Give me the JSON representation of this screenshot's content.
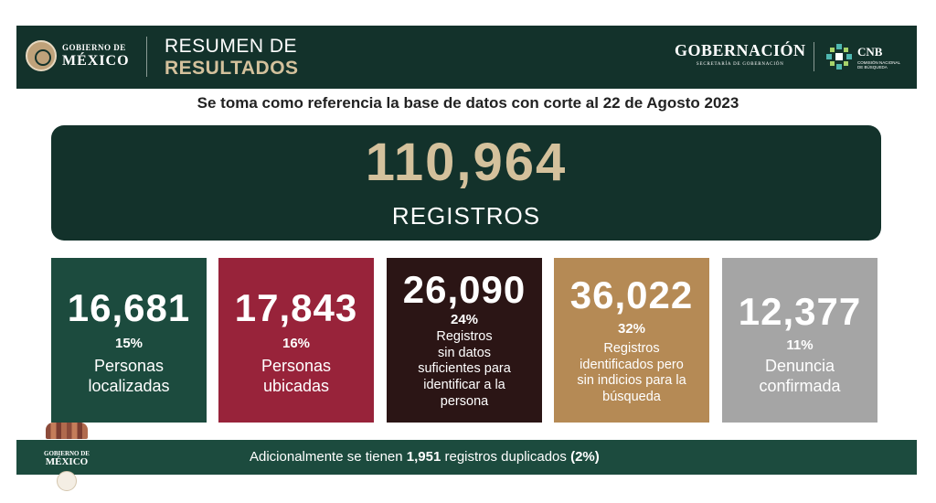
{
  "header": {
    "gov_line1": "GOBIERNO DE",
    "gov_line2": "MÉXICO",
    "title_line1": "RESUMEN DE",
    "title_line2": "RESULTADOS",
    "gobernacion": "GOBERNACIÓN",
    "gobernacion_sub": "SECRETARÍA DE GOBERNACIÓN",
    "cnb": "CNB",
    "cnb_sub": "COMISIÓN NACIONAL DE BÚSQUEDA"
  },
  "subtitle": "Se toma como referencia la base de datos con corte al 22 de Agosto 2023",
  "total": {
    "number": "110,964",
    "label": "REGISTROS"
  },
  "cards": [
    {
      "number": "16,681",
      "percent": "15%",
      "lines": [
        "Personas",
        "localizadas"
      ],
      "color": "#1c4b3e"
    },
    {
      "number": "17,843",
      "percent": "16%",
      "lines": [
        "Personas",
        "ubicadas"
      ],
      "color": "#98233a"
    },
    {
      "number": "26,090",
      "percent": "24%",
      "lines": [
        "Registros",
        "sin datos",
        "suficientes para",
        "identificar a la",
        "persona"
      ],
      "color": "#2b1515"
    },
    {
      "number": "36,022",
      "percent": "32%",
      "lines": [
        "Registros",
        "identificados pero",
        "sin indicios para la",
        "búsqueda"
      ],
      "color": "#b58a55"
    },
    {
      "number": "12,377",
      "percent": "11%",
      "lines": [
        "Denuncia",
        "confirmada"
      ],
      "color": "#a5a5a5"
    }
  ],
  "footer": {
    "prefix": "Adicionalmente se tienen ",
    "count": "1,951",
    "middle": " registros duplicados ",
    "percent": "(2%)",
    "logo_line1": "GOBIERNO DE",
    "logo_line2": "MÉXICO"
  },
  "icons": [
    "mexico-seal-icon",
    "cnb-logo-icon",
    "footer-seal-icon"
  ]
}
